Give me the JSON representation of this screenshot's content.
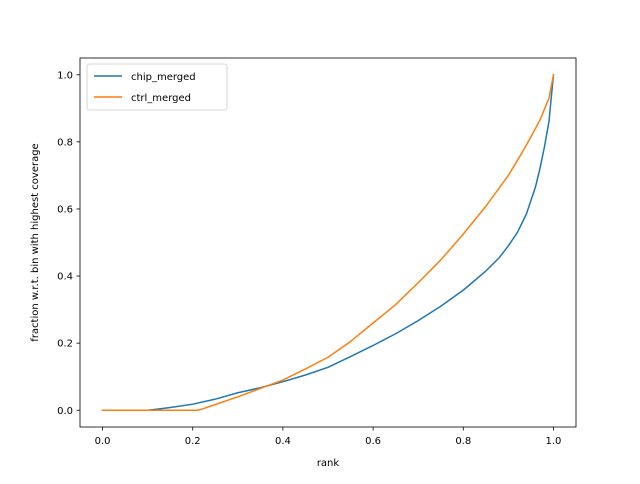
{
  "chart_data": {
    "type": "line",
    "title": "",
    "xlabel": "rank",
    "ylabel": "fraction w.r.t. bin with highest coverage",
    "xlim": [
      -0.05,
      1.05
    ],
    "ylim": [
      -0.05,
      1.05
    ],
    "xticks": [
      0.0,
      0.2,
      0.4,
      0.6,
      0.8,
      1.0
    ],
    "xtick_labels": [
      "0.0",
      "0.2",
      "0.4",
      "0.6",
      "0.8",
      "1.0"
    ],
    "yticks": [
      0.0,
      0.2,
      0.4,
      0.6,
      0.8,
      1.0
    ],
    "ytick_labels": [
      "0.0",
      "0.2",
      "0.4",
      "0.6",
      "0.8",
      "1.0"
    ],
    "grid": false,
    "legend_position": "upper-left",
    "series": [
      {
        "name": "chip_merged",
        "color": "#1f77b4",
        "x": [
          0.0,
          0.05,
          0.1,
          0.12,
          0.15,
          0.2,
          0.25,
          0.3,
          0.35,
          0.4,
          0.45,
          0.5,
          0.55,
          0.6,
          0.65,
          0.7,
          0.75,
          0.8,
          0.85,
          0.88,
          0.9,
          0.92,
          0.94,
          0.96,
          0.97,
          0.98,
          0.99,
          1.0
        ],
        "y": [
          0.0,
          0.0,
          0.0,
          0.003,
          0.008,
          0.018,
          0.033,
          0.052,
          0.067,
          0.085,
          0.105,
          0.128,
          0.16,
          0.193,
          0.228,
          0.267,
          0.31,
          0.358,
          0.415,
          0.455,
          0.49,
          0.53,
          0.585,
          0.665,
          0.72,
          0.785,
          0.86,
          1.0
        ]
      },
      {
        "name": "ctrl_merged",
        "color": "#ff7f0e",
        "x": [
          0.0,
          0.1,
          0.15,
          0.21,
          0.22,
          0.25,
          0.3,
          0.35,
          0.4,
          0.45,
          0.5,
          0.55,
          0.6,
          0.65,
          0.7,
          0.75,
          0.8,
          0.85,
          0.9,
          0.93,
          0.95,
          0.97,
          0.99,
          1.0
        ],
        "y": [
          0.0,
          0.0,
          0.0,
          0.0,
          0.003,
          0.017,
          0.04,
          0.065,
          0.09,
          0.123,
          0.158,
          0.205,
          0.26,
          0.315,
          0.38,
          0.448,
          0.525,
          0.608,
          0.7,
          0.767,
          0.815,
          0.865,
          0.93,
          1.0
        ]
      }
    ]
  }
}
